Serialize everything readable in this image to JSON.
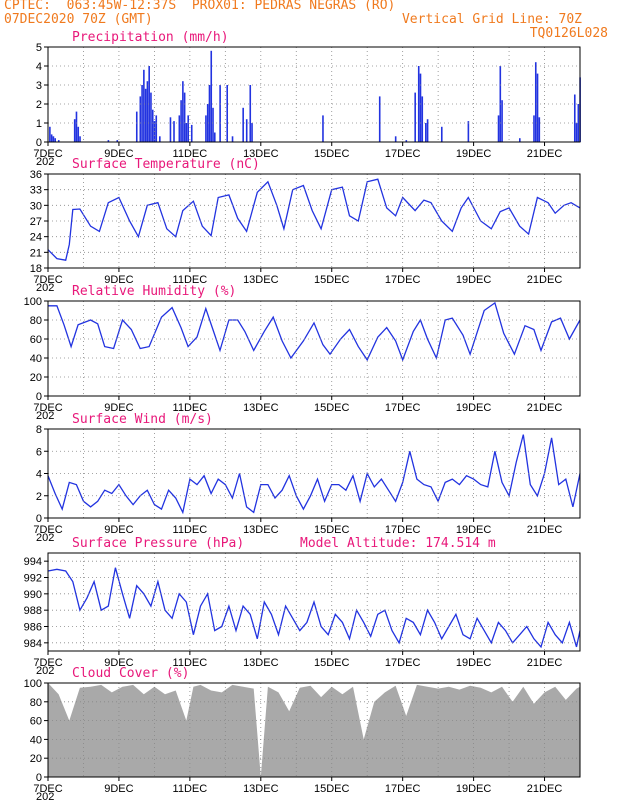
{
  "header": {
    "source": "CPTEC:",
    "location": "063:45W-12:37S",
    "station": "PROX01: PEDRAS NEGRAS (RO)",
    "run": "07DEC2020 70Z (GMT)",
    "grid_line": "Vertical Grid Line: 70Z",
    "code": "TQ0126L028"
  },
  "x_axis": {
    "ticks": [
      "7DEC",
      "9DEC",
      "11DEC",
      "13DEC",
      "15DEC",
      "17DEC",
      "19DEC",
      "21DEC"
    ],
    "fragment": "202"
  },
  "colors": {
    "series": "#2233e0",
    "cloud": "#a9a9a9",
    "title": "#e8187a",
    "header": "#f07a1e"
  },
  "chart_data": [
    {
      "type": "bar",
      "title": "Precipitation (mm/h)",
      "ylim": [
        0,
        5
      ],
      "yticks": [
        0,
        1,
        2,
        3,
        4,
        5
      ],
      "x_range": [
        7,
        22
      ],
      "x": [
        7.05,
        7.1,
        7.15,
        7.2,
        7.3,
        7.75,
        7.8,
        7.85,
        7.9,
        8.7,
        8.95,
        9.5,
        9.6,
        9.65,
        9.7,
        9.75,
        9.8,
        9.85,
        9.9,
        9.95,
        10.0,
        10.05,
        10.15,
        10.45,
        10.55,
        10.7,
        10.75,
        10.8,
        10.85,
        10.9,
        10.95,
        11.05,
        11.45,
        11.5,
        11.55,
        11.6,
        11.65,
        11.7,
        11.85,
        12.05,
        12.2,
        12.5,
        12.6,
        12.7,
        12.75,
        14.75,
        16.35,
        16.8,
        17.1,
        17.35,
        17.45,
        17.5,
        17.55,
        17.65,
        17.7,
        18.1,
        18.85,
        19.7,
        19.75,
        19.8,
        20.3,
        20.7,
        20.75,
        20.8,
        20.85,
        21.85,
        21.9,
        21.95,
        22.0
      ],
      "values": [
        0.8,
        0.4,
        0.3,
        0.2,
        0.1,
        1.2,
        1.6,
        0.8,
        0.3,
        0.1,
        0.1,
        1.6,
        2.4,
        3.0,
        3.8,
        2.8,
        3.2,
        4.0,
        2.6,
        1.7,
        1.1,
        1.4,
        0.3,
        1.3,
        1.1,
        1.4,
        2.2,
        3.2,
        2.6,
        1.0,
        1.4,
        0.9,
        1.4,
        2.0,
        3.0,
        4.8,
        1.8,
        0.5,
        3.0,
        3.0,
        0.3,
        1.8,
        1.2,
        3.0,
        1.0,
        1.4,
        2.4,
        0.3,
        0.1,
        2.6,
        4.0,
        3.6,
        2.4,
        1.0,
        1.2,
        0.8,
        1.1,
        1.4,
        4.0,
        2.2,
        0.2,
        1.4,
        4.2,
        3.6,
        1.3,
        2.5,
        1.0,
        2.0,
        3.4
      ]
    },
    {
      "type": "line",
      "title": "Surface Temperature (nC)",
      "ylim": [
        18,
        36
      ],
      "yticks": [
        18,
        21,
        24,
        27,
        30,
        33,
        36
      ],
      "x_range": [
        7,
        22
      ],
      "x": [
        7.0,
        7.25,
        7.5,
        7.6,
        7.7,
        7.9,
        8.2,
        8.45,
        8.7,
        9.0,
        9.3,
        9.55,
        9.8,
        10.1,
        10.35,
        10.6,
        10.8,
        11.1,
        11.35,
        11.6,
        11.8,
        12.1,
        12.35,
        12.6,
        12.9,
        13.2,
        13.45,
        13.65,
        13.9,
        14.2,
        14.45,
        14.7,
        15.0,
        15.3,
        15.5,
        15.75,
        16.0,
        16.3,
        16.55,
        16.8,
        17.0,
        17.35,
        17.6,
        17.8,
        18.1,
        18.4,
        18.65,
        18.85,
        19.2,
        19.5,
        19.75,
        20.0,
        20.3,
        20.55,
        20.8,
        21.1,
        21.3,
        21.55,
        21.75,
        22.0
      ],
      "values": [
        21.5,
        19.8,
        19.5,
        22.5,
        29.2,
        29.3,
        26.0,
        25.0,
        30.5,
        31.5,
        27.0,
        24.0,
        30.0,
        30.5,
        25.5,
        24.0,
        29.0,
        30.8,
        26.0,
        24.2,
        31.5,
        32.0,
        27.5,
        25.0,
        32.5,
        34.5,
        30.0,
        25.5,
        33.0,
        33.8,
        29.0,
        25.5,
        33.0,
        33.5,
        28.0,
        27.0,
        34.5,
        35.0,
        29.5,
        28.0,
        31.5,
        29.0,
        31.0,
        30.5,
        27.0,
        25.0,
        29.5,
        31.5,
        27.0,
        25.5,
        28.8,
        29.5,
        26.0,
        24.5,
        31.5,
        30.5,
        28.5,
        30.0,
        30.5,
        29.5
      ]
    },
    {
      "type": "line",
      "title": "Relative Humidity (%)",
      "ylim": [
        0,
        100
      ],
      "yticks": [
        0,
        20,
        40,
        60,
        80,
        100
      ],
      "x_range": [
        7,
        22
      ],
      "x": [
        7.0,
        7.25,
        7.45,
        7.65,
        7.85,
        8.2,
        8.4,
        8.6,
        8.85,
        9.1,
        9.35,
        9.6,
        9.85,
        10.2,
        10.5,
        10.75,
        10.95,
        11.2,
        11.45,
        11.65,
        11.85,
        12.1,
        12.35,
        12.55,
        12.8,
        13.1,
        13.35,
        13.6,
        13.85,
        14.2,
        14.5,
        14.75,
        14.95,
        15.25,
        15.5,
        15.75,
        16.0,
        16.3,
        16.55,
        16.8,
        17.0,
        17.3,
        17.5,
        17.7,
        17.95,
        18.2,
        18.4,
        18.7,
        18.9,
        19.3,
        19.6,
        19.85,
        20.15,
        20.45,
        20.7,
        20.9,
        21.2,
        21.45,
        21.7,
        22.0
      ],
      "values": [
        95,
        95,
        75,
        52,
        75,
        80,
        76,
        52,
        50,
        80,
        70,
        50,
        52,
        83,
        93,
        72,
        52,
        62,
        92,
        70,
        48,
        80,
        80,
        68,
        48,
        68,
        83,
        58,
        40,
        58,
        77,
        54,
        44,
        60,
        70,
        52,
        38,
        62,
        72,
        58,
        38,
        68,
        80,
        60,
        40,
        80,
        82,
        64,
        44,
        90,
        98,
        66,
        44,
        74,
        70,
        48,
        78,
        82,
        60,
        80
      ]
    },
    {
      "type": "line",
      "title": "Surface Wind (m/s)",
      "ylim": [
        0,
        8
      ],
      "yticks": [
        0,
        2,
        4,
        6,
        8
      ],
      "x_range": [
        7,
        22
      ],
      "x": [
        7.0,
        7.2,
        7.4,
        7.6,
        7.8,
        8.0,
        8.2,
        8.4,
        8.6,
        8.8,
        9.0,
        9.2,
        9.4,
        9.6,
        9.8,
        10.0,
        10.2,
        10.4,
        10.6,
        10.8,
        11.0,
        11.2,
        11.4,
        11.6,
        11.8,
        12.0,
        12.2,
        12.4,
        12.6,
        12.8,
        13.0,
        13.2,
        13.4,
        13.6,
        13.8,
        14.0,
        14.2,
        14.4,
        14.6,
        14.8,
        15.0,
        15.2,
        15.4,
        15.6,
        15.8,
        16.0,
        16.2,
        16.4,
        16.6,
        16.8,
        17.0,
        17.2,
        17.4,
        17.6,
        17.8,
        18.0,
        18.2,
        18.4,
        18.6,
        18.8,
        19.0,
        19.2,
        19.4,
        19.6,
        19.8,
        20.0,
        20.2,
        20.4,
        20.6,
        20.8,
        21.0,
        21.2,
        21.4,
        21.6,
        21.8,
        22.0
      ],
      "values": [
        3.8,
        2.2,
        0.8,
        3.2,
        3.0,
        1.5,
        1.0,
        1.5,
        2.5,
        2.2,
        3.0,
        2.0,
        1.2,
        2.0,
        2.5,
        1.2,
        0.8,
        2.5,
        1.8,
        0.5,
        3.5,
        3.0,
        3.8,
        2.2,
        3.5,
        3.0,
        1.8,
        4.0,
        1.0,
        0.5,
        3.0,
        3.0,
        1.8,
        2.5,
        3.8,
        2.0,
        0.8,
        2.0,
        3.5,
        1.5,
        3.0,
        3.0,
        2.5,
        3.8,
        1.5,
        4.0,
        2.8,
        3.5,
        2.5,
        1.5,
        3.2,
        6.0,
        3.5,
        3.0,
        2.8,
        1.5,
        3.2,
        3.5,
        3.0,
        3.8,
        3.5,
        3.0,
        2.8,
        6.0,
        3.2,
        2.0,
        5.0,
        7.5,
        3.0,
        2.0,
        4.0,
        7.2,
        3.0,
        3.5,
        1.0,
        4.0
      ]
    },
    {
      "type": "line",
      "title": "Surface Pressure (hPa)",
      "annotation": "Model Altitude: 174.514 m",
      "ylim": [
        983,
        995
      ],
      "yticks": [
        984,
        986,
        988,
        990,
        992,
        994
      ],
      "x_range": [
        7,
        22
      ],
      "x": [
        7.0,
        7.25,
        7.5,
        7.7,
        7.9,
        8.1,
        8.3,
        8.5,
        8.7,
        8.9,
        9.1,
        9.3,
        9.5,
        9.7,
        9.9,
        10.1,
        10.3,
        10.5,
        10.7,
        10.9,
        11.1,
        11.3,
        11.5,
        11.7,
        11.9,
        12.1,
        12.3,
        12.5,
        12.7,
        12.9,
        13.1,
        13.3,
        13.5,
        13.7,
        13.9,
        14.1,
        14.3,
        14.5,
        14.7,
        14.9,
        15.1,
        15.3,
        15.5,
        15.7,
        15.9,
        16.1,
        16.3,
        16.5,
        16.7,
        16.9,
        17.1,
        17.3,
        17.5,
        17.7,
        17.9,
        18.1,
        18.3,
        18.5,
        18.7,
        18.9,
        19.1,
        19.3,
        19.5,
        19.7,
        19.9,
        20.1,
        20.3,
        20.5,
        20.7,
        20.9,
        21.1,
        21.3,
        21.5,
        21.7,
        21.9,
        22.0
      ],
      "values": [
        992.8,
        993.0,
        992.8,
        991.5,
        988.0,
        989.5,
        991.5,
        988.0,
        988.5,
        993.2,
        990.0,
        987.0,
        991.0,
        990.0,
        988.5,
        991.5,
        988.0,
        987.0,
        990.0,
        989.0,
        985.0,
        988.5,
        990.0,
        985.5,
        986.0,
        988.5,
        985.5,
        988.5,
        987.5,
        984.5,
        989.0,
        987.5,
        985.0,
        988.5,
        987.0,
        985.5,
        986.5,
        989.0,
        986.0,
        985.0,
        987.5,
        986.5,
        984.5,
        988.0,
        986.5,
        984.8,
        987.5,
        988.0,
        985.5,
        984.0,
        987.0,
        986.5,
        985.0,
        988.0,
        986.5,
        984.5,
        986.0,
        987.5,
        985.0,
        984.5,
        987.0,
        985.5,
        984.0,
        986.5,
        985.5,
        984.0,
        985.0,
        986.0,
        984.5,
        983.5,
        986.5,
        985.0,
        984.0,
        986.5,
        983.5,
        985.5
      ]
    },
    {
      "type": "area",
      "title": "Cloud Cover (%)",
      "ylim": [
        0,
        100
      ],
      "yticks": [
        0,
        20,
        40,
        60,
        80,
        100
      ],
      "x_range": [
        7,
        22
      ],
      "x": [
        7.0,
        7.3,
        7.6,
        7.9,
        8.2,
        8.5,
        8.8,
        9.1,
        9.4,
        9.7,
        10.0,
        10.3,
        10.6,
        10.9,
        11.1,
        11.3,
        11.6,
        11.9,
        12.2,
        12.5,
        12.8,
        13.0,
        13.2,
        13.5,
        13.8,
        14.1,
        14.4,
        14.7,
        15.0,
        15.3,
        15.6,
        15.9,
        16.2,
        16.5,
        16.8,
        17.1,
        17.4,
        17.7,
        18.0,
        18.3,
        18.6,
        18.9,
        19.2,
        19.5,
        19.8,
        20.1,
        20.4,
        20.7,
        21.0,
        21.3,
        21.6,
        21.9,
        22.0
      ],
      "values": [
        100,
        88,
        60,
        95,
        96,
        98,
        90,
        96,
        98,
        88,
        96,
        88,
        92,
        60,
        96,
        98,
        92,
        90,
        98,
        96,
        94,
        0,
        96,
        90,
        70,
        95,
        97,
        85,
        96,
        88,
        96,
        40,
        80,
        90,
        97,
        65,
        98,
        96,
        94,
        96,
        93,
        97,
        95,
        90,
        96,
        80,
        96,
        78,
        90,
        96,
        82,
        94,
        96
      ]
    }
  ]
}
